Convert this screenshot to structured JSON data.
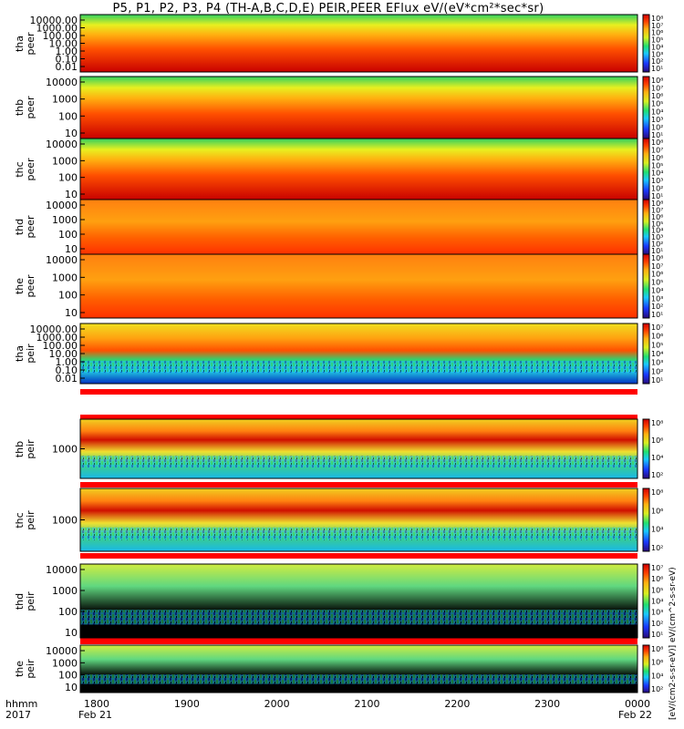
{
  "title": "P5, P1, P2, P3, P4 (TH-A,B,C,D,E) PEIR,PEER EFlux eV/(eV*cm²*sec*sr)",
  "colorbar_label": "[eV/(cm2-s-sr-eV)] eV/(cm^2-s-sr-eV)",
  "x_axis": {
    "head_labels": [
      "hhmm",
      "2017"
    ],
    "ticks": [
      "1800",
      "1900",
      "2000",
      "2100",
      "2200",
      "2300",
      "0000"
    ],
    "start_date": "Feb 21",
    "end_date": "Feb 22"
  },
  "chart_data": [
    {
      "type": "heatmap",
      "probe": "tha",
      "species": "peer",
      "ylabel": "tha\npeer",
      "yticks": [
        "10000.00",
        "1000.00",
        "100.00",
        "10.00",
        "1.00",
        "0.10",
        "0.01"
      ],
      "colorbar_ticks": [
        "10⁸",
        "10⁷",
        "10⁶",
        "10⁵",
        "10⁴",
        "10³",
        "10²",
        "10¹"
      ]
    },
    {
      "type": "heatmap",
      "probe": "thb",
      "species": "peer",
      "ylabel": "thb\npeer",
      "yticks": [
        "10000",
        "1000",
        "100",
        "10"
      ],
      "colorbar_ticks": [
        "10⁸",
        "10⁷",
        "10⁶",
        "10⁵",
        "10⁴",
        "10³",
        "10²",
        "10¹"
      ]
    },
    {
      "type": "heatmap",
      "probe": "thc",
      "species": "peer",
      "ylabel": "thc\npeer",
      "yticks": [
        "10000",
        "1000",
        "100",
        "10"
      ],
      "colorbar_ticks": [
        "10⁸",
        "10⁷",
        "10⁶",
        "10⁵",
        "10⁴",
        "10³",
        "10²",
        "10¹"
      ]
    },
    {
      "type": "heatmap",
      "probe": "thd",
      "species": "peer",
      "ylabel": "thd\npeer",
      "yticks": [
        "10000",
        "1000",
        "100",
        "10"
      ],
      "colorbar_ticks": [
        "10⁸",
        "10⁷",
        "10⁶",
        "10⁵",
        "10⁴",
        "10³",
        "10²",
        "10¹"
      ]
    },
    {
      "type": "heatmap",
      "probe": "the",
      "species": "peer",
      "ylabel": "the\npeer",
      "yticks": [
        "10000",
        "1000",
        "100",
        "10"
      ],
      "colorbar_ticks": [
        "10⁸",
        "10⁷",
        "10⁶",
        "10⁵",
        "10⁴",
        "10³",
        "10²",
        "10¹"
      ]
    },
    {
      "type": "heatmap",
      "probe": "tha",
      "species": "peir",
      "ylabel": "tha\npeir",
      "yticks": [
        "10000.00",
        "1000.00",
        "100.00",
        "10.00",
        "1.00",
        "0.10",
        "0.01"
      ],
      "colorbar_ticks": [
        "10⁷",
        "10⁶",
        "10⁵",
        "10⁴",
        "10³",
        "10²",
        "10¹"
      ]
    },
    {
      "type": "heatmap",
      "probe": "thb",
      "species": "peir",
      "ylabel": "thb\npeir",
      "yticks": [
        "1000"
      ],
      "colorbar_ticks": [
        "10⁸",
        "10⁶",
        "10⁴",
        "10²"
      ]
    },
    {
      "type": "heatmap",
      "probe": "thc",
      "species": "peir",
      "ylabel": "thc\npeir",
      "yticks": [
        "1000"
      ],
      "colorbar_ticks": [
        "10⁸",
        "10⁶",
        "10⁴",
        "10²"
      ]
    },
    {
      "type": "heatmap",
      "probe": "thd",
      "species": "peir",
      "ylabel": "thd\npeir",
      "yticks": [
        "10000",
        "1000",
        "100",
        "10"
      ],
      "colorbar_ticks": [
        "10⁷",
        "10⁶",
        "10⁵",
        "10⁴",
        "10³",
        "10²",
        "10¹"
      ]
    },
    {
      "type": "heatmap",
      "probe": "the",
      "species": "peir",
      "ylabel": "the\npeir",
      "yticks": [
        "10000",
        "1000",
        "100",
        "10"
      ],
      "colorbar_ticks": [
        "10⁸",
        "10⁶",
        "10⁴",
        "10²"
      ]
    }
  ]
}
